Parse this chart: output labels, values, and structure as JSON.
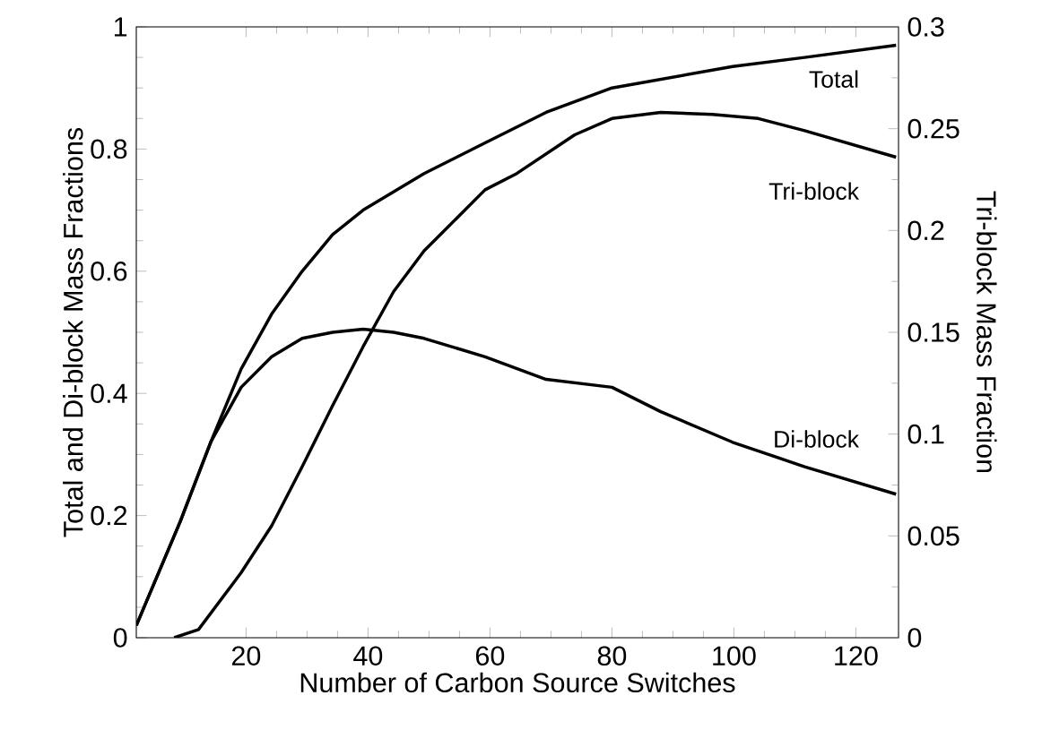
{
  "chart_data": {
    "type": "line",
    "xlabel": "Number of Carbon Source Switches",
    "ylabel": "Total and Di-block Mass Fractions",
    "y2label": "Tri-block Mass Fraction",
    "xlim": [
      2,
      127
    ],
    "xticks": [
      20,
      40,
      60,
      80,
      100,
      120
    ],
    "ylim": [
      0,
      1
    ],
    "yticks": [
      0,
      0.2,
      0.4,
      0.6,
      0.8,
      1
    ],
    "y2lim": [
      0,
      0.3
    ],
    "y2ticks": [
      0,
      0.05,
      0.1,
      0.15,
      0.2,
      0.25,
      0.3
    ],
    "marker": "none",
    "line_style": "solid",
    "series": [
      {
        "name": "Total",
        "color": "#000000",
        "x": [
          2,
          9.2,
          14.2,
          19.2,
          24.2,
          29.2,
          34.2,
          39.2,
          44.2,
          49.2,
          59.2,
          69.2,
          80,
          99.8,
          111.6,
          126.6
        ],
        "values": [
          0.02,
          0.19,
          0.32,
          0.44,
          0.53,
          0.6,
          0.66,
          0.7,
          0.73,
          0.76,
          0.81,
          0.86,
          0.9,
          0.935,
          0.95,
          0.97
        ]
      },
      {
        "name": "Tri-block",
        "color": "#000000",
        "axis": "y2",
        "x": [
          8.2,
          12.2,
          19.2,
          24.2,
          29.2,
          34.2,
          39.2,
          44.2,
          49.2,
          59.2,
          64.4,
          73.9,
          80,
          88,
          96.5,
          104,
          111.6,
          126.6
        ],
        "values": [
          0,
          0.004,
          0.032,
          0.055,
          0.084,
          0.114,
          0.143,
          0.17,
          0.19,
          0.22,
          0.228,
          0.247,
          0.255,
          0.258,
          0.257,
          0.255,
          0.249,
          0.236
        ]
      },
      {
        "name": "Di-block",
        "color": "#000000",
        "x": [
          2,
          9.2,
          14.2,
          19.2,
          24.2,
          29.2,
          34.2,
          39.2,
          44.2,
          49.2,
          59.2,
          69.2,
          80,
          88,
          99.8,
          111.6,
          126.6
        ],
        "values": [
          0.02,
          0.19,
          0.32,
          0.41,
          0.46,
          0.49,
          0.5,
          0.505,
          0.5,
          0.49,
          0.46,
          0.423,
          0.41,
          0.37,
          0.32,
          0.28,
          0.235
        ]
      }
    ]
  }
}
